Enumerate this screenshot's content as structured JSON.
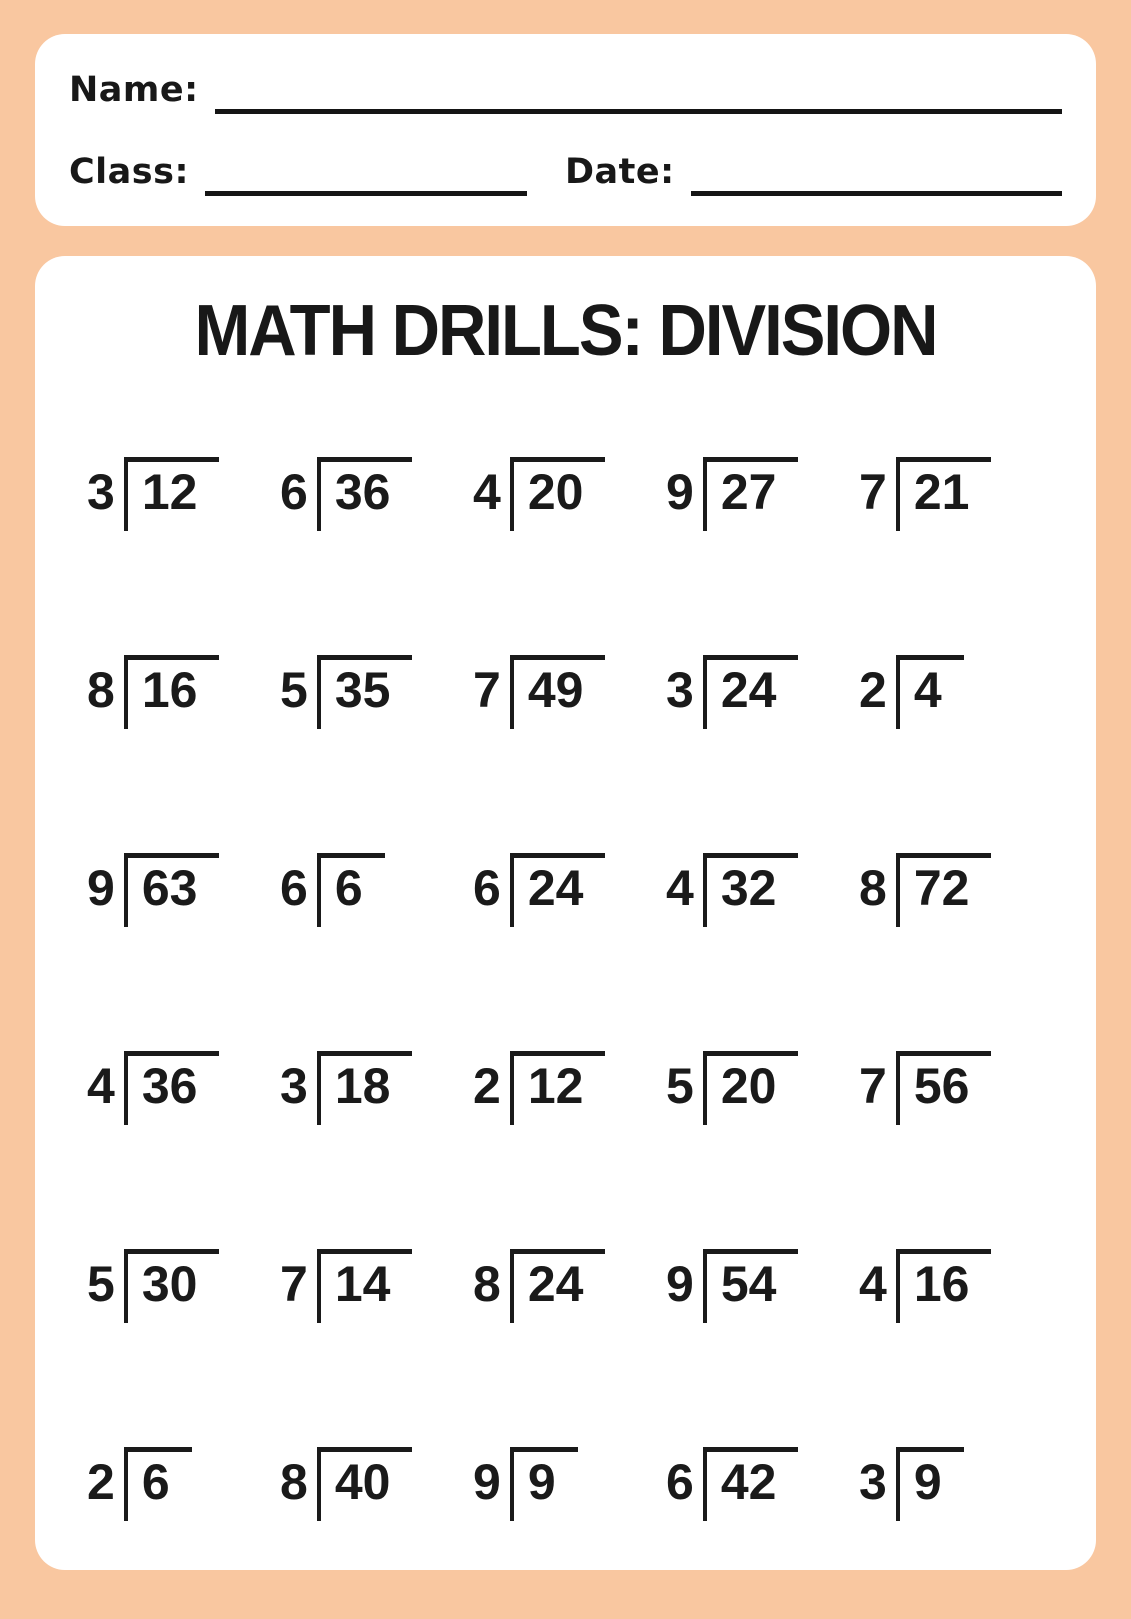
{
  "palette": {
    "background": "#F9C7A0",
    "card": "#FFFFFF",
    "ink": "#181818"
  },
  "header": {
    "name_label": "Name:",
    "class_label": "Class:",
    "date_label": "Date:"
  },
  "worksheet": {
    "title": "MATH DRILLS: DIVISION",
    "grid": {
      "columns": 5,
      "rows": 6
    },
    "problems": [
      {
        "divisor": "3",
        "dividend": "12"
      },
      {
        "divisor": "6",
        "dividend": "36"
      },
      {
        "divisor": "4",
        "dividend": "20"
      },
      {
        "divisor": "9",
        "dividend": "27"
      },
      {
        "divisor": "7",
        "dividend": "21"
      },
      {
        "divisor": "8",
        "dividend": "16"
      },
      {
        "divisor": "5",
        "dividend": "35"
      },
      {
        "divisor": "7",
        "dividend": "49"
      },
      {
        "divisor": "3",
        "dividend": "24"
      },
      {
        "divisor": "2",
        "dividend": "4"
      },
      {
        "divisor": "9",
        "dividend": "63"
      },
      {
        "divisor": "6",
        "dividend": "6"
      },
      {
        "divisor": "6",
        "dividend": "24"
      },
      {
        "divisor": "4",
        "dividend": "32"
      },
      {
        "divisor": "8",
        "dividend": "72"
      },
      {
        "divisor": "4",
        "dividend": "36"
      },
      {
        "divisor": "3",
        "dividend": "18"
      },
      {
        "divisor": "2",
        "dividend": "12"
      },
      {
        "divisor": "5",
        "dividend": "20"
      },
      {
        "divisor": "7",
        "dividend": "56"
      },
      {
        "divisor": "5",
        "dividend": "30"
      },
      {
        "divisor": "7",
        "dividend": "14"
      },
      {
        "divisor": "8",
        "dividend": "24"
      },
      {
        "divisor": "9",
        "dividend": "54"
      },
      {
        "divisor": "4",
        "dividend": "16"
      },
      {
        "divisor": "2",
        "dividend": "6"
      },
      {
        "divisor": "8",
        "dividend": "40"
      },
      {
        "divisor": "9",
        "dividend": "9"
      },
      {
        "divisor": "6",
        "dividend": "42"
      },
      {
        "divisor": "3",
        "dividend": "9"
      }
    ]
  }
}
